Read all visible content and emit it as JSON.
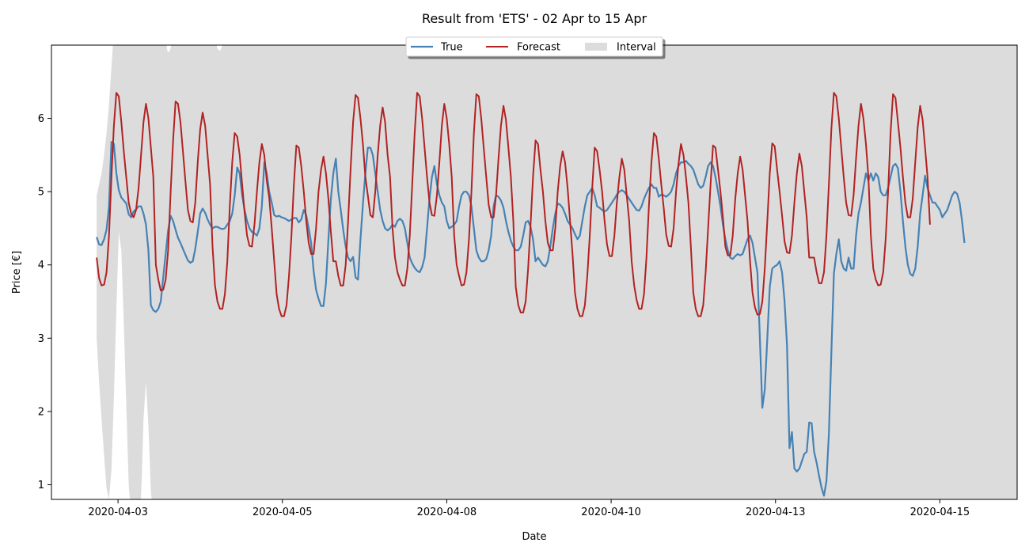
{
  "chart_data": {
    "type": "line",
    "title": "Result from 'ETS' - 02 Apr to 15 Apr",
    "xlabel": "Date",
    "ylabel": "Price [€]",
    "xlim": [
      -0.55,
      11.2
    ],
    "ylim": [
      0.8,
      7.0
    ],
    "xticks": [
      {
        "x": 0.26,
        "label": "2020-04-03"
      },
      {
        "x": 2.26,
        "label": "2020-04-05"
      },
      {
        "x": 4.26,
        "label": "2020-04-08"
      },
      {
        "x": 6.26,
        "label": "2020-04-10"
      },
      {
        "x": 8.26,
        "label": "2020-04-13"
      },
      {
        "x": 10.26,
        "label": "2020-04-15"
      }
    ],
    "yticks": [
      1,
      2,
      3,
      4,
      5,
      6
    ],
    "grid": false,
    "legend": {
      "placement": "top-center",
      "entries": [
        "True",
        "Forecast",
        "Interval"
      ]
    },
    "colors": {
      "true": "#4682b4",
      "forecast": "#b22222",
      "interval": "#dcdcdc"
    },
    "x_start": 0,
    "x_step": 0.03,
    "series": [
      {
        "name": "True",
        "values": [
          4.38,
          4.28,
          4.27,
          4.35,
          4.48,
          4.8,
          5.68,
          5.65,
          5.25,
          5.02,
          4.92,
          4.88,
          4.84,
          4.69,
          4.65,
          4.73,
          4.76,
          4.8,
          4.8,
          4.7,
          4.55,
          4.2,
          3.45,
          3.38,
          3.36,
          3.4,
          3.5,
          3.83,
          4.15,
          4.47,
          4.67,
          4.6,
          4.48,
          4.37,
          4.3,
          4.22,
          4.14,
          4.06,
          4.03,
          4.05,
          4.22,
          4.45,
          4.7,
          4.77,
          4.71,
          4.62,
          4.55,
          4.5,
          4.52,
          4.52,
          4.5,
          4.49,
          4.5,
          4.55,
          4.6,
          4.7,
          4.95,
          5.33,
          5.25,
          4.95,
          4.75,
          4.6,
          4.5,
          4.45,
          4.43,
          4.4,
          4.5,
          4.8,
          5.4,
          5.25,
          5.0,
          4.85,
          4.68,
          4.66,
          4.67,
          4.65,
          4.64,
          4.62,
          4.6,
          4.62,
          4.64,
          4.64,
          4.58,
          4.62,
          4.75,
          4.68,
          4.5,
          4.3,
          3.92,
          3.66,
          3.54,
          3.44,
          3.44,
          3.75,
          4.35,
          4.9,
          5.25,
          5.45,
          5.0,
          4.75,
          4.48,
          4.25,
          4.1,
          4.05,
          4.11,
          3.83,
          3.8,
          4.35,
          4.83,
          5.25,
          5.6,
          5.6,
          5.5,
          5.25,
          5.0,
          4.75,
          4.6,
          4.5,
          4.47,
          4.5,
          4.55,
          4.52,
          4.6,
          4.63,
          4.6,
          4.5,
          4.3,
          4.1,
          4.02,
          3.96,
          3.92,
          3.9,
          3.97,
          4.1,
          4.5,
          4.9,
          5.2,
          5.35,
          5.1,
          4.95,
          4.85,
          4.8,
          4.6,
          4.5,
          4.52,
          4.55,
          4.6,
          4.8,
          4.95,
          5.0,
          5.0,
          4.95,
          4.8,
          4.5,
          4.2,
          4.1,
          4.05,
          4.05,
          4.08,
          4.2,
          4.4,
          4.8,
          4.95,
          4.93,
          4.88,
          4.78,
          4.6,
          4.45,
          4.33,
          4.25,
          4.2,
          4.2,
          4.25,
          4.4,
          4.58,
          4.6,
          4.52,
          4.35,
          4.05,
          4.1,
          4.05,
          4.0,
          3.98,
          4.05,
          4.25,
          4.5,
          4.7,
          4.84,
          4.82,
          4.78,
          4.7,
          4.6,
          4.55,
          4.5,
          4.42,
          4.35,
          4.4,
          4.6,
          4.8,
          4.95,
          5.0,
          5.05,
          4.95,
          4.8,
          4.78,
          4.75,
          4.73,
          4.75,
          4.8,
          4.85,
          4.9,
          4.96,
          5.0,
          5.02,
          5.0,
          4.95,
          4.9,
          4.85,
          4.8,
          4.75,
          4.74,
          4.8,
          4.9,
          4.98,
          5.05,
          5.1,
          5.05,
          5.05,
          4.93,
          4.96,
          4.95,
          4.93,
          4.96,
          5.0,
          5.1,
          5.25,
          5.35,
          5.4,
          5.4,
          5.42,
          5.38,
          5.35,
          5.3,
          5.2,
          5.1,
          5.05,
          5.08,
          5.2,
          5.35,
          5.4,
          5.35,
          5.2,
          5.0,
          4.8,
          4.55,
          4.35,
          4.2,
          4.1,
          4.08,
          4.12,
          4.15,
          4.13,
          4.15,
          4.25,
          4.35,
          4.4,
          4.3,
          4.1,
          3.9,
          3.0,
          2.05,
          2.3,
          3.0,
          3.7,
          3.95,
          3.98,
          4.0,
          4.05,
          3.9,
          3.5,
          2.9,
          1.5,
          1.72,
          1.22,
          1.18,
          1.22,
          1.32,
          1.42,
          1.45,
          1.85,
          1.84,
          1.45,
          1.3,
          1.12,
          0.96,
          0.85,
          1.05,
          1.7,
          2.8,
          3.88,
          4.15,
          4.35,
          4.05,
          3.95,
          3.92,
          4.1,
          3.95,
          3.95,
          4.4,
          4.7,
          4.85,
          5.05,
          5.25,
          5.15,
          5.25,
          5.15,
          5.25,
          5.2,
          5.0,
          4.95,
          4.95,
          5.05,
          5.2,
          5.35,
          5.38,
          5.32,
          5.0,
          4.6,
          4.25,
          4.0,
          3.88,
          3.85,
          3.95,
          4.25,
          4.7,
          4.95,
          5.22,
          5.05,
          4.95,
          4.85,
          4.85,
          4.8,
          4.75,
          4.65,
          4.7,
          4.75,
          4.85,
          4.95,
          5.0,
          4.97,
          4.85,
          4.6,
          4.3
        ]
      },
      {
        "name": "Forecast",
        "values": [
          4.1,
          3.82,
          3.72,
          3.73,
          3.9,
          4.4,
          5.2,
          5.9,
          6.35,
          6.3,
          5.95,
          5.55,
          5.2,
          4.85,
          4.7,
          4.65,
          4.75,
          5.05,
          5.5,
          5.95,
          6.2,
          6.0,
          5.6,
          5.2,
          4.0,
          3.8,
          3.65,
          3.66,
          3.8,
          4.2,
          5.0,
          5.7,
          6.23,
          6.2,
          5.95,
          5.55,
          5.15,
          4.75,
          4.6,
          4.58,
          4.85,
          5.4,
          5.85,
          6.08,
          5.9,
          5.5,
          5.1,
          4.25,
          3.72,
          3.5,
          3.4,
          3.4,
          3.6,
          4.05,
          4.8,
          5.4,
          5.8,
          5.75,
          5.5,
          5.1,
          4.72,
          4.4,
          4.26,
          4.25,
          4.55,
          5.0,
          5.4,
          5.65,
          5.5,
          5.15,
          4.92,
          4.5,
          4.05,
          3.6,
          3.4,
          3.3,
          3.3,
          3.45,
          3.85,
          4.4,
          5.1,
          5.63,
          5.6,
          5.35,
          5.0,
          4.6,
          4.3,
          4.15,
          4.15,
          4.5,
          5.0,
          5.3,
          5.48,
          5.25,
          4.9,
          4.45,
          4.05,
          4.05,
          3.85,
          3.72,
          3.72,
          4.0,
          4.6,
          5.3,
          5.95,
          6.32,
          6.28,
          6.0,
          5.65,
          5.2,
          4.95,
          4.68,
          4.65,
          5.0,
          5.5,
          5.9,
          6.15,
          5.95,
          5.5,
          5.2,
          4.5,
          4.1,
          3.9,
          3.8,
          3.72,
          3.72,
          3.95,
          4.4,
          5.1,
          5.8,
          6.35,
          6.3,
          6.0,
          5.6,
          5.2,
          4.85,
          4.68,
          4.67,
          4.95,
          5.4,
          5.9,
          6.2,
          6.0,
          5.65,
          5.2,
          4.4,
          4.0,
          3.85,
          3.72,
          3.73,
          3.9,
          4.35,
          5.0,
          5.8,
          6.33,
          6.3,
          6.0,
          5.6,
          5.2,
          4.82,
          4.65,
          4.65,
          4.95,
          5.45,
          5.9,
          6.17,
          5.98,
          5.6,
          5.2,
          4.6,
          3.7,
          3.45,
          3.35,
          3.35,
          3.5,
          3.95,
          4.55,
          5.2,
          5.7,
          5.65,
          5.3,
          5.0,
          4.6,
          4.3,
          4.2,
          4.2,
          4.5,
          5.0,
          5.35,
          5.55,
          5.4,
          5.05,
          4.6,
          4.15,
          3.62,
          3.4,
          3.3,
          3.3,
          3.45,
          3.85,
          4.4,
          5.05,
          5.6,
          5.55,
          5.3,
          5.0,
          4.6,
          4.28,
          4.12,
          4.12,
          4.4,
          4.85,
          5.2,
          5.45,
          5.3,
          4.95,
          4.6,
          4.05,
          3.72,
          3.52,
          3.4,
          3.4,
          3.6,
          4.1,
          4.8,
          5.4,
          5.8,
          5.75,
          5.45,
          5.1,
          4.78,
          4.42,
          4.26,
          4.25,
          4.5,
          5.0,
          5.38,
          5.65,
          5.5,
          5.2,
          4.85,
          4.25,
          3.62,
          3.4,
          3.3,
          3.3,
          3.45,
          3.9,
          4.5,
          5.1,
          5.63,
          5.6,
          5.3,
          5.0,
          4.65,
          4.25,
          4.13,
          4.13,
          4.4,
          4.9,
          5.25,
          5.48,
          5.3,
          4.95,
          4.6,
          4.05,
          3.62,
          3.42,
          3.32,
          3.33,
          3.5,
          3.95,
          4.6,
          5.25,
          5.66,
          5.62,
          5.3,
          5.0,
          4.68,
          4.32,
          4.17,
          4.16,
          4.4,
          4.85,
          5.25,
          5.52,
          5.35,
          5.0,
          4.65,
          4.1,
          4.1,
          4.1,
          3.9,
          3.75,
          3.75,
          3.9,
          4.4,
          5.1,
          5.85,
          6.35,
          6.3,
          6.0,
          5.6,
          5.2,
          4.85,
          4.68,
          4.67,
          4.95,
          5.45,
          5.9,
          6.2,
          6.0,
          5.65,
          5.2,
          4.4,
          3.95,
          3.8,
          3.72,
          3.73,
          3.9,
          4.35,
          5.0,
          5.8,
          6.33,
          6.28,
          5.95,
          5.6,
          5.2,
          4.85,
          4.65,
          4.65,
          4.9,
          5.4,
          5.88,
          6.17,
          5.98,
          5.6,
          5.2,
          4.55
        ]
      }
    ],
    "interval_lower": [
      {
        "x": 0.0,
        "y": 3.0
      },
      {
        "x": 0.03,
        "y": 2.4
      },
      {
        "x": 0.06,
        "y": 1.9
      },
      {
        "x": 0.09,
        "y": 1.4
      },
      {
        "x": 0.12,
        "y": 0.95
      },
      {
        "x": 0.15,
        "y": 0.8
      },
      {
        "x": 0.18,
        "y": 1.2
      },
      {
        "x": 0.21,
        "y": 2.2
      },
      {
        "x": 0.24,
        "y": 3.4
      },
      {
        "x": 0.27,
        "y": 4.45
      },
      {
        "x": 0.3,
        "y": 4.2
      },
      {
        "x": 0.33,
        "y": 3.2
      },
      {
        "x": 0.36,
        "y": 2.1
      },
      {
        "x": 0.39,
        "y": 1.0
      },
      {
        "x": 0.42,
        "y": 0.6
      },
      {
        "x": 0.46,
        "y": 0.6
      },
      {
        "x": 0.5,
        "y": 0.6
      },
      {
        "x": 0.53,
        "y": 0.6
      },
      {
        "x": 0.55,
        "y": 1.1
      },
      {
        "x": 0.57,
        "y": 1.9
      },
      {
        "x": 0.6,
        "y": 2.4
      },
      {
        "x": 0.63,
        "y": 1.8
      },
      {
        "x": 0.66,
        "y": 0.9
      },
      {
        "x": 0.69,
        "y": 0.6
      },
      {
        "x": 11.2,
        "y": 0.6
      }
    ],
    "interval_upper": [
      {
        "x": 0.0,
        "y": 4.95
      },
      {
        "x": 0.03,
        "y": 5.1
      },
      {
        "x": 0.06,
        "y": 5.25
      },
      {
        "x": 0.09,
        "y": 5.5
      },
      {
        "x": 0.12,
        "y": 5.8
      },
      {
        "x": 0.15,
        "y": 6.2
      },
      {
        "x": 0.18,
        "y": 6.7
      },
      {
        "x": 0.21,
        "y": 7.2
      },
      {
        "x": 0.24,
        "y": 7.3
      },
      {
        "x": 0.8,
        "y": 7.3
      },
      {
        "x": 0.84,
        "y": 7.1
      },
      {
        "x": 0.86,
        "y": 6.92
      },
      {
        "x": 0.88,
        "y": 6.9
      },
      {
        "x": 0.9,
        "y": 6.96
      },
      {
        "x": 0.92,
        "y": 7.1
      },
      {
        "x": 0.95,
        "y": 7.3
      },
      {
        "x": 1.4,
        "y": 7.3
      },
      {
        "x": 1.44,
        "y": 7.1
      },
      {
        "x": 1.47,
        "y": 6.95
      },
      {
        "x": 1.5,
        "y": 6.92
      },
      {
        "x": 1.53,
        "y": 7.0
      },
      {
        "x": 1.57,
        "y": 7.2
      },
      {
        "x": 1.6,
        "y": 7.3
      },
      {
        "x": 11.2,
        "y": 7.3
      }
    ]
  }
}
